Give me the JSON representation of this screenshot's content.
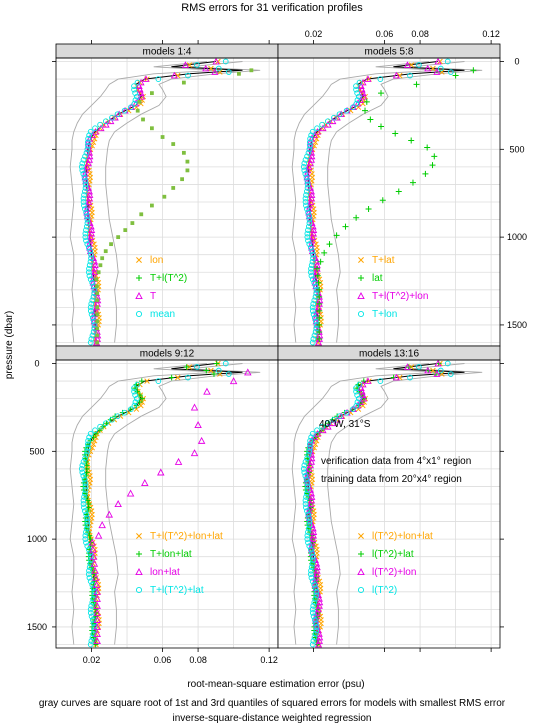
{
  "chart_data": {
    "type": "scatter",
    "title": "RMS errors for 31 verification profiles",
    "xlabel": "root-mean-square estimation error (psu)",
    "ylabel": "pressure (dbar)",
    "caption_line1": "gray curves are square root of 1st and 3rd quantiles of squared errors for models with smallest RMS error",
    "caption_line2": "inverse-square-distance weighted regression",
    "xlim": [
      0,
      0.125
    ],
    "ylim": [
      1620,
      -20
    ],
    "x_ticks": [
      "0.02",
      "0.06",
      "0.08",
      "0.12"
    ],
    "x_tick_values": [
      0.02,
      0.06,
      0.08,
      0.12
    ],
    "x_ticks_top": [
      "0.02",
      "0.06",
      "0.08",
      "0.12"
    ],
    "x_tick_values_top": [
      0.02,
      0.06,
      0.08,
      0.12
    ],
    "y_ticks": [
      "0",
      "500",
      "1000",
      "1500"
    ],
    "y_tick_values": [
      0,
      500,
      1000,
      1500
    ],
    "grid": true,
    "colors": {
      "orange": "#FFA500",
      "green": "#00CC00",
      "magenta": "#E600E6",
      "cyan": "#00E5E5",
      "gray": "#AAAAAA",
      "black": "#000000",
      "strip": "#D9D9D9",
      "grid": "#DDDDDD"
    },
    "panels": [
      {
        "strip": "models 1:4",
        "legend": [
          {
            "label": "lon",
            "symbol": "x",
            "color": "#FFA500"
          },
          {
            "label": "T+l(T^2)",
            "symbol": "+",
            "color": "#00CC00"
          },
          {
            "label": "T",
            "symbol": "triangle",
            "color": "#E600E6"
          },
          {
            "label": "mean",
            "symbol": "circle",
            "color": "#00E5E5"
          }
        ],
        "highlight": {
          "series": 1,
          "shape": "square",
          "color": "#7FBF3F",
          "x": [
            0.11,
            0.103,
            0.072,
            0.054,
            0.047,
            0.046,
            0.049,
            0.054,
            0.06,
            0.066,
            0.072,
            0.074,
            0.074,
            0.071,
            0.066,
            0.061,
            0.054,
            0.048,
            0.043,
            0.039,
            0.035,
            0.031,
            0.028,
            0.026,
            0.025,
            0.024
          ],
          "y": [
            50,
            70,
            120,
            180,
            230,
            280,
            330,
            380,
            430,
            470,
            520,
            570,
            620,
            670,
            720,
            770,
            820,
            870,
            920,
            960,
            1000,
            1040,
            1080,
            1120,
            1160,
            1200
          ]
        }
      },
      {
        "strip": "models 5:8",
        "legend": [
          {
            "label": "T+lat",
            "symbol": "x",
            "color": "#FFA500"
          },
          {
            "label": "lat",
            "symbol": "+",
            "color": "#00CC00"
          },
          {
            "label": "T+l(T^2)+lon",
            "symbol": "triangle",
            "color": "#E600E6"
          },
          {
            "label": "T+lon",
            "symbol": "circle",
            "color": "#00E5E5"
          }
        ],
        "highlight": {
          "series": 1,
          "shape": "plus",
          "color": "#00CC00",
          "x": [
            0.11,
            0.1,
            0.078,
            0.058,
            0.05,
            0.049,
            0.052,
            0.058,
            0.066,
            0.075,
            0.084,
            0.088,
            0.087,
            0.083,
            0.076,
            0.068,
            0.059,
            0.051,
            0.044,
            0.038,
            0.033,
            0.029,
            0.026,
            0.024
          ],
          "y": [
            50,
            80,
            130,
            180,
            230,
            280,
            330,
            370,
            410,
            450,
            490,
            540,
            590,
            640,
            690,
            740,
            790,
            840,
            890,
            940,
            990,
            1040,
            1090,
            1140
          ]
        }
      },
      {
        "strip": "models 9:12",
        "legend": [
          {
            "label": "T+l(T^2)+lon+lat",
            "symbol": "x",
            "color": "#FFA500"
          },
          {
            "label": "T+lon+lat",
            "symbol": "+",
            "color": "#00CC00"
          },
          {
            "label": "lon+lat",
            "symbol": "triangle",
            "color": "#E600E6"
          },
          {
            "label": "T+l(T^2)+lat",
            "symbol": "circle",
            "color": "#00E5E5"
          }
        ],
        "highlight": {
          "series": 2,
          "shape": "triangle",
          "color": "#E600E6",
          "x": [
            0.108,
            0.1,
            0.085,
            0.078,
            0.08,
            0.082,
            0.078,
            0.069,
            0.059,
            0.05,
            0.042,
            0.035,
            0.03,
            0.026,
            0.024
          ],
          "y": [
            50,
            100,
            160,
            250,
            350,
            440,
            510,
            560,
            620,
            680,
            740,
            800,
            860,
            920,
            980
          ]
        }
      },
      {
        "strip": "models 13:16",
        "legend": [
          {
            "label": "l(T^2)+lon+lat",
            "symbol": "x",
            "color": "#FFA500"
          },
          {
            "label": "l(T^2)+lat",
            "symbol": "+",
            "color": "#00CC00"
          },
          {
            "label": "l(T^2)+lon",
            "symbol": "triangle",
            "color": "#E600E6"
          },
          {
            "label": "l(T^2)",
            "symbol": "circle",
            "color": "#00E5E5"
          }
        ],
        "annotations": [
          "40°W, 31°S",
          "verification data from 4°x1° region",
          "training data from 20°x4° region"
        ]
      }
    ],
    "base_curve": {
      "depths": [
        0,
        30,
        50,
        70,
        100,
        130,
        160,
        200,
        250,
        300,
        350,
        400,
        450,
        500,
        600,
        700,
        800,
        900,
        1000,
        1100,
        1200,
        1300,
        1400,
        1500,
        1600
      ],
      "rms": [
        0.09,
        0.065,
        0.105,
        0.075,
        0.05,
        0.045,
        0.046,
        0.048,
        0.045,
        0.035,
        0.028,
        0.022,
        0.019,
        0.018,
        0.017,
        0.017,
        0.018,
        0.018,
        0.019,
        0.02,
        0.021,
        0.022,
        0.022,
        0.022,
        0.022
      ],
      "q1": [
        0.085,
        0.055,
        0.09,
        0.055,
        0.035,
        0.03,
        0.028,
        0.025,
        0.02,
        0.015,
        0.012,
        0.01,
        0.009,
        0.009,
        0.008,
        0.009,
        0.01,
        0.009,
        0.008,
        0.01,
        0.01,
        0.009,
        0.01,
        0.009,
        0.01
      ],
      "q3": [
        0.105,
        0.075,
        0.115,
        0.09,
        0.065,
        0.058,
        0.06,
        0.062,
        0.058,
        0.048,
        0.04,
        0.033,
        0.03,
        0.029,
        0.028,
        0.028,
        0.029,
        0.03,
        0.032,
        0.034,
        0.035,
        0.033,
        0.034,
        0.034,
        0.033
      ]
    }
  }
}
